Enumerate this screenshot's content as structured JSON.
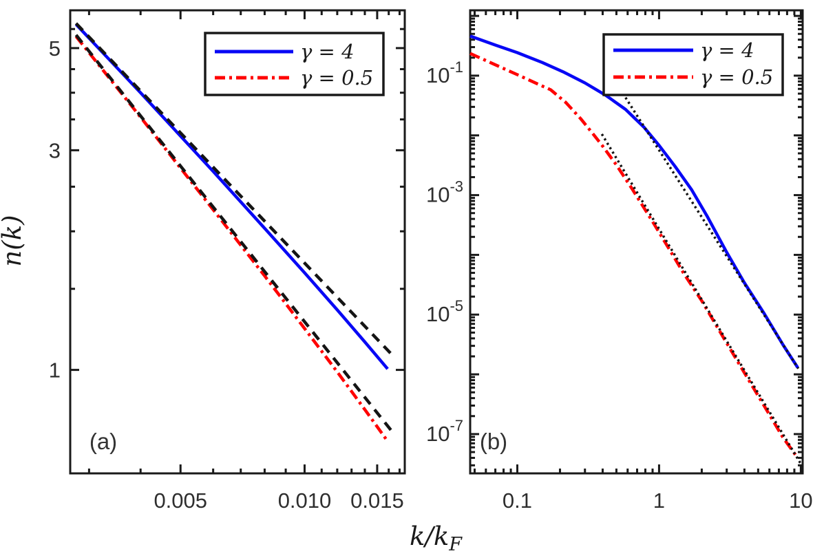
{
  "figure": {
    "background": "#ffffff",
    "ylabel": "n(k)",
    "xlabel": {
      "main": "k/k",
      "sub": "F"
    },
    "text_color": "#2e2e2e",
    "axis_color": "#1a1a1a"
  },
  "chart_data": [
    {
      "id": "panel-a",
      "type": "line",
      "panel_label": "(a)",
      "x_axis": {
        "scale": "log",
        "range": [
          0.0027,
          0.0175
        ],
        "major_ticks": [
          0.005,
          0.01,
          0.015
        ],
        "labels": [
          "0.005",
          "0.010",
          "0.015"
        ],
        "minor_ticks": [
          0.003,
          0.004,
          0.006,
          0.007,
          0.008,
          0.009,
          0.011,
          0.012,
          0.013,
          0.014,
          0.016,
          0.017
        ]
      },
      "y_axis": {
        "scale": "log",
        "range": [
          0.596,
          6.04
        ],
        "major_ticks": [
          1,
          3,
          5
        ],
        "labels": [
          "1",
          "3",
          "5"
        ],
        "minor_ticks": [
          1.5,
          2,
          2.5,
          3.5,
          4,
          4.5,
          5.5
        ]
      },
      "series": [
        {
          "id": "gamma-4-curve",
          "label": "γ = 4",
          "color": "#0808f5",
          "style": "solid",
          "points": [
            [
              0.00279,
              5.63
            ],
            [
              0.004,
              4.0
            ],
            [
              0.006,
              2.7
            ],
            [
              0.008,
              2.03
            ],
            [
              0.01,
              1.625
            ],
            [
              0.012,
              1.35
            ],
            [
              0.014,
              1.15
            ],
            [
              0.0159,
              1.005
            ]
          ]
        },
        {
          "id": "gamma-05-curve",
          "label": "γ = 0.5",
          "color": "#ff0000",
          "style": "dashdot",
          "points": [
            [
              0.00279,
              5.3
            ],
            [
              0.004,
              3.54
            ],
            [
              0.006,
              2.23
            ],
            [
              0.008,
              1.6
            ],
            [
              0.01,
              1.23
            ],
            [
              0.012,
              0.99
            ],
            [
              0.014,
              0.82
            ],
            [
              0.0159,
              0.7
            ]
          ]
        },
        {
          "id": "gamma-4-powerlaw-fit",
          "label": "",
          "color": "#141414",
          "style": "dashed",
          "points": [
            [
              0.00279,
              5.66
            ],
            [
              0.0162,
              1.085
            ]
          ]
        },
        {
          "id": "gamma-05-powerlaw-fit",
          "label": "",
          "color": "#141414",
          "style": "dashed",
          "points": [
            [
              0.00279,
              5.34
            ],
            [
              0.0162,
              0.74
            ]
          ]
        }
      ],
      "legend": {
        "entries": [
          {
            "label": "γ = 4",
            "series": 0
          },
          {
            "label": "γ = 0.5",
            "series": 1
          }
        ]
      }
    },
    {
      "id": "panel-b",
      "type": "line",
      "panel_label": "(b)",
      "x_axis": {
        "scale": "log",
        "range": [
          0.0465,
          10.3
        ],
        "major_ticks": [
          0.1,
          1,
          10
        ],
        "labels": [
          "0.1",
          "1",
          "10"
        ],
        "minor_ticks": [
          0.05,
          0.06,
          0.07,
          0.08,
          0.09,
          0.2,
          0.3,
          0.4,
          0.5,
          0.6,
          0.7,
          0.8,
          0.9,
          2,
          3,
          4,
          5,
          6,
          7,
          8,
          9
        ]
      },
      "y_axis": {
        "scale": "log",
        "range": [
          2.2e-08,
          1.24
        ],
        "major_ticks": [
          1,
          0.1,
          0.01,
          0.001,
          0.0001,
          1e-05,
          1e-06,
          1e-07
        ],
        "labeled_ticks": [
          {
            "value": 0.1,
            "base": "10",
            "exp": "-1"
          },
          {
            "value": 0.001,
            "base": "10",
            "exp": "-3"
          },
          {
            "value": 1e-05,
            "base": "10",
            "exp": "-5"
          },
          {
            "value": 1e-07,
            "base": "10",
            "exp": "-7"
          }
        ],
        "minor_decades": [
          -1,
          -2,
          -3,
          -4,
          -5,
          -6,
          -7,
          -8
        ],
        "minor_mantissas": [
          2,
          3,
          4,
          5,
          6,
          7,
          8,
          9
        ]
      },
      "series": [
        {
          "id": "gamma-4-curve",
          "label": "γ = 4",
          "color": "#0808f5",
          "style": "solid",
          "points": [
            [
              0.0465,
              0.46
            ],
            [
              0.07,
              0.325
            ],
            [
              0.1,
              0.243
            ],
            [
              0.15,
              0.166
            ],
            [
              0.21,
              0.116
            ],
            [
              0.3,
              0.0755
            ],
            [
              0.42,
              0.047
            ],
            [
              0.58,
              0.0272
            ],
            [
              0.78,
              0.0138
            ],
            [
              1.0,
              0.0068
            ],
            [
              1.3,
              0.003
            ],
            [
              1.7,
              0.00122
            ],
            [
              2.2,
              0.00043
            ],
            [
              3.0,
              0.00011
            ],
            [
              4.0,
              3.4e-05
            ],
            [
              5.5,
              1.05e-05
            ],
            [
              7.5,
              3.1e-06
            ],
            [
              9.5,
              1.3e-06
            ]
          ]
        },
        {
          "id": "gamma-05-curve",
          "label": "γ = 0.5",
          "color": "#ff0000",
          "style": "dashdot",
          "points": [
            [
              0.0465,
              0.235
            ],
            [
              0.07,
              0.152
            ],
            [
              0.1,
              0.104
            ],
            [
              0.14,
              0.072
            ],
            [
              0.172,
              0.058
            ],
            [
              0.22,
              0.0355
            ],
            [
              0.28,
              0.019
            ],
            [
              0.34,
              0.0108
            ],
            [
              0.4,
              0.0066
            ],
            [
              0.5,
              0.0032
            ],
            [
              0.65,
              0.00124
            ],
            [
              0.9,
              0.00036
            ],
            [
              1.15,
              0.000138
            ],
            [
              1.5,
              4.8e-05
            ],
            [
              2.0,
              1.7e-05
            ],
            [
              2.8,
              4.4e-06
            ],
            [
              4.0,
              1.06e-06
            ],
            [
              5.5,
              3e-07
            ],
            [
              7.5,
              8.7e-08
            ],
            [
              9.5,
              4e-08
            ]
          ]
        },
        {
          "id": "gamma-4-k4-asymptote",
          "label": "",
          "color": "#141414",
          "style": "dotted",
          "points": [
            [
              0.58,
              0.043
            ],
            [
              9.6,
              1.25e-06
            ]
          ]
        },
        {
          "id": "gamma-05-k4-asymptote",
          "label": "",
          "color": "#141414",
          "style": "dotted",
          "points": [
            [
              0.395,
              0.0105
            ],
            [
              9.9,
              3.3e-08
            ]
          ]
        }
      ],
      "legend": {
        "entries": [
          {
            "label": "γ = 4",
            "series": 0
          },
          {
            "label": "γ = 0.5",
            "series": 1
          }
        ]
      }
    }
  ]
}
